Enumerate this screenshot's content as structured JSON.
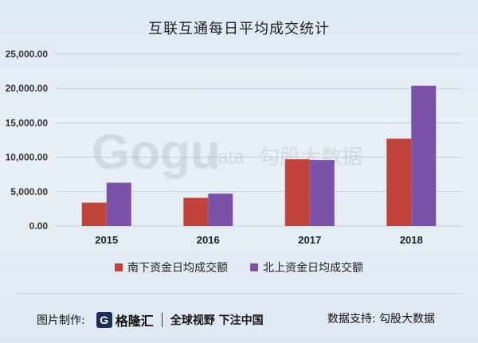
{
  "chart_data": {
    "type": "bar",
    "title": "互联互通每日平均成交统计",
    "categories": [
      "2015",
      "2016",
      "2017",
      "2018"
    ],
    "series": [
      {
        "name": "南下资金日均成交额",
        "values": [
          3400,
          4100,
          9700,
          12700
        ],
        "color": "#c0443b"
      },
      {
        "name": "北上资金日均成交额",
        "values": [
          6300,
          4700,
          9600,
          20400
        ],
        "color": "#7b52a8"
      }
    ],
    "ylim": [
      0,
      25000
    ],
    "yticks": [
      0,
      5000,
      10000,
      15000,
      20000,
      25000
    ],
    "ytick_labels": [
      "0.00",
      "5,000.00",
      "10,000.00",
      "15,000.00",
      "20,000.00",
      "25,000.00"
    ],
    "grid": true,
    "legend_position": "bottom"
  },
  "watermark": {
    "logo_text": "Gogu",
    "data_text": "data",
    "cn_text": "勾股大数据"
  },
  "footer": {
    "made_by_label": "图片制作:",
    "brand_logo": "G",
    "brand_name": "格隆汇",
    "slogan": "全球视野 下注中国",
    "support_label": "数据支持: 勾股大数据"
  }
}
